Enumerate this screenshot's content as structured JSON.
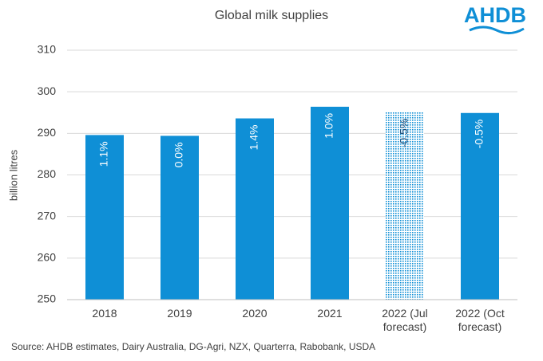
{
  "chart_data": {
    "type": "bar",
    "title": "Global milk supplies",
    "logo": "AHDB",
    "y_label": "billion litres",
    "categories": [
      "2018",
      "2019",
      "2020",
      "2021",
      "2022 (Jul forecast)",
      "2022 (Oct forecast)"
    ],
    "values": [
      289.6,
      289.4,
      293.6,
      296.4,
      295.1,
      294.9
    ],
    "annotations": [
      "1.1%",
      "0.0%",
      "1.4%",
      "1.0%",
      "-0.5%",
      "-0.5%"
    ],
    "fills": [
      "solid",
      "solid",
      "solid",
      "solid",
      "dotted",
      "solid"
    ],
    "color": "#0f8fd6",
    "ylim": [
      250,
      310
    ],
    "yticks": [
      250,
      260,
      270,
      280,
      290,
      300,
      310
    ],
    "grid": true,
    "source": "Source: AHDB estimates, Dairy Australia, DG-Agri, NZX, Quarterra, Rabobank, USDA"
  }
}
